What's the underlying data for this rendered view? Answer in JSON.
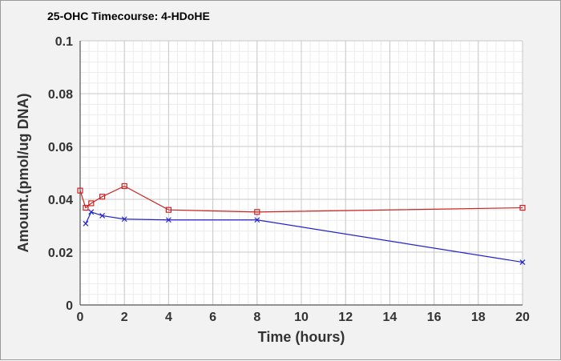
{
  "chart_data": {
    "type": "line",
    "title": "25-OHC Timecourse: 4-HDoHE",
    "xlabel": "Time (hours)",
    "ylabel": "Amount.(pmol/ug DNA)",
    "xlim": [
      0,
      20
    ],
    "ylim": [
      0,
      0.1
    ],
    "x_ticks": [
      0,
      2,
      4,
      6,
      8,
      10,
      12,
      14,
      16,
      18,
      20
    ],
    "y_ticks": [
      0,
      0.02,
      0.04,
      0.06,
      0.08,
      0.1
    ],
    "y_tick_labels": [
      "0",
      "0.02",
      "0.04",
      "0.06",
      "0.08",
      "0.1"
    ],
    "grid": true,
    "series": [
      {
        "color": "#cc2222",
        "marker": "square",
        "x": [
          0,
          0.25,
          0.5,
          1,
          2,
          4,
          8,
          20
        ],
        "values": [
          0.0433,
          0.0368,
          0.0385,
          0.041,
          0.045,
          0.036,
          0.0352,
          0.0368
        ]
      },
      {
        "color": "#2222cc",
        "marker": "x",
        "x": [
          0.25,
          0.5,
          1,
          2,
          4,
          8,
          20
        ],
        "values": [
          0.0308,
          0.0352,
          0.0338,
          0.0325,
          0.0322,
          0.0322,
          0.0162
        ]
      }
    ]
  }
}
